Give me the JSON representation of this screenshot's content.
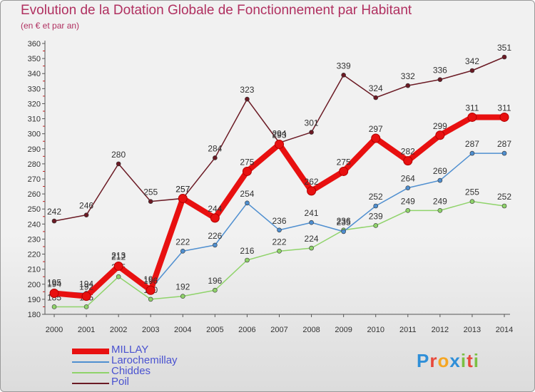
{
  "title": "Evolution de la Dotation Globale de Fonctionnement par Habitant",
  "subtitle": "(en € et par an)",
  "brand": {
    "letters": [
      "P",
      "r",
      "o",
      "x",
      "i",
      "t",
      "i"
    ],
    "colors": [
      "#2f8fd8",
      "#e8483b",
      "#f5a623",
      "#2f8fd8",
      "#7bc043",
      "#e8483b",
      "#7bc043"
    ]
  },
  "chart_data": {
    "type": "line",
    "x": [
      "2000",
      "2001",
      "2002",
      "2003",
      "2004",
      "2005",
      "2006",
      "2007",
      "2008",
      "2009",
      "2010",
      "2011",
      "2012",
      "2013",
      "2014"
    ],
    "ylim": [
      180,
      360
    ],
    "yticks": [
      180,
      190,
      200,
      210,
      220,
      230,
      240,
      250,
      260,
      270,
      280,
      290,
      300,
      310,
      320,
      330,
      340,
      350,
      360
    ],
    "grid": false,
    "legend": "bottom-left",
    "series": [
      {
        "name": "Poil",
        "color": "#6b1a24",
        "values": [
          242,
          246,
          280,
          255,
          257,
          284,
          323,
          294,
          301,
          339,
          324,
          332,
          336,
          342,
          351
        ]
      },
      {
        "name": "Chiddes",
        "color": "#8fd36a",
        "values": [
          185,
          185,
          205,
          190,
          192,
          196,
          216,
          222,
          224,
          236,
          239,
          249,
          249,
          255,
          252
        ]
      },
      {
        "name": "Larochemillay",
        "color": "#4f8fd0",
        "values": [
          195,
          194,
          213,
          197,
          222,
          226,
          254,
          236,
          241,
          235,
          252,
          264,
          269,
          287,
          287
        ]
      },
      {
        "name": "MILLAY",
        "color": "#e81010",
        "values": [
          194,
          192,
          212,
          196,
          257,
          244,
          275,
          293,
          262,
          275,
          297,
          282,
          299,
          311,
          311
        ]
      }
    ],
    "legend_order": [
      "MILLAY",
      "Larochemillay",
      "Chiddes",
      "Poil"
    ]
  }
}
